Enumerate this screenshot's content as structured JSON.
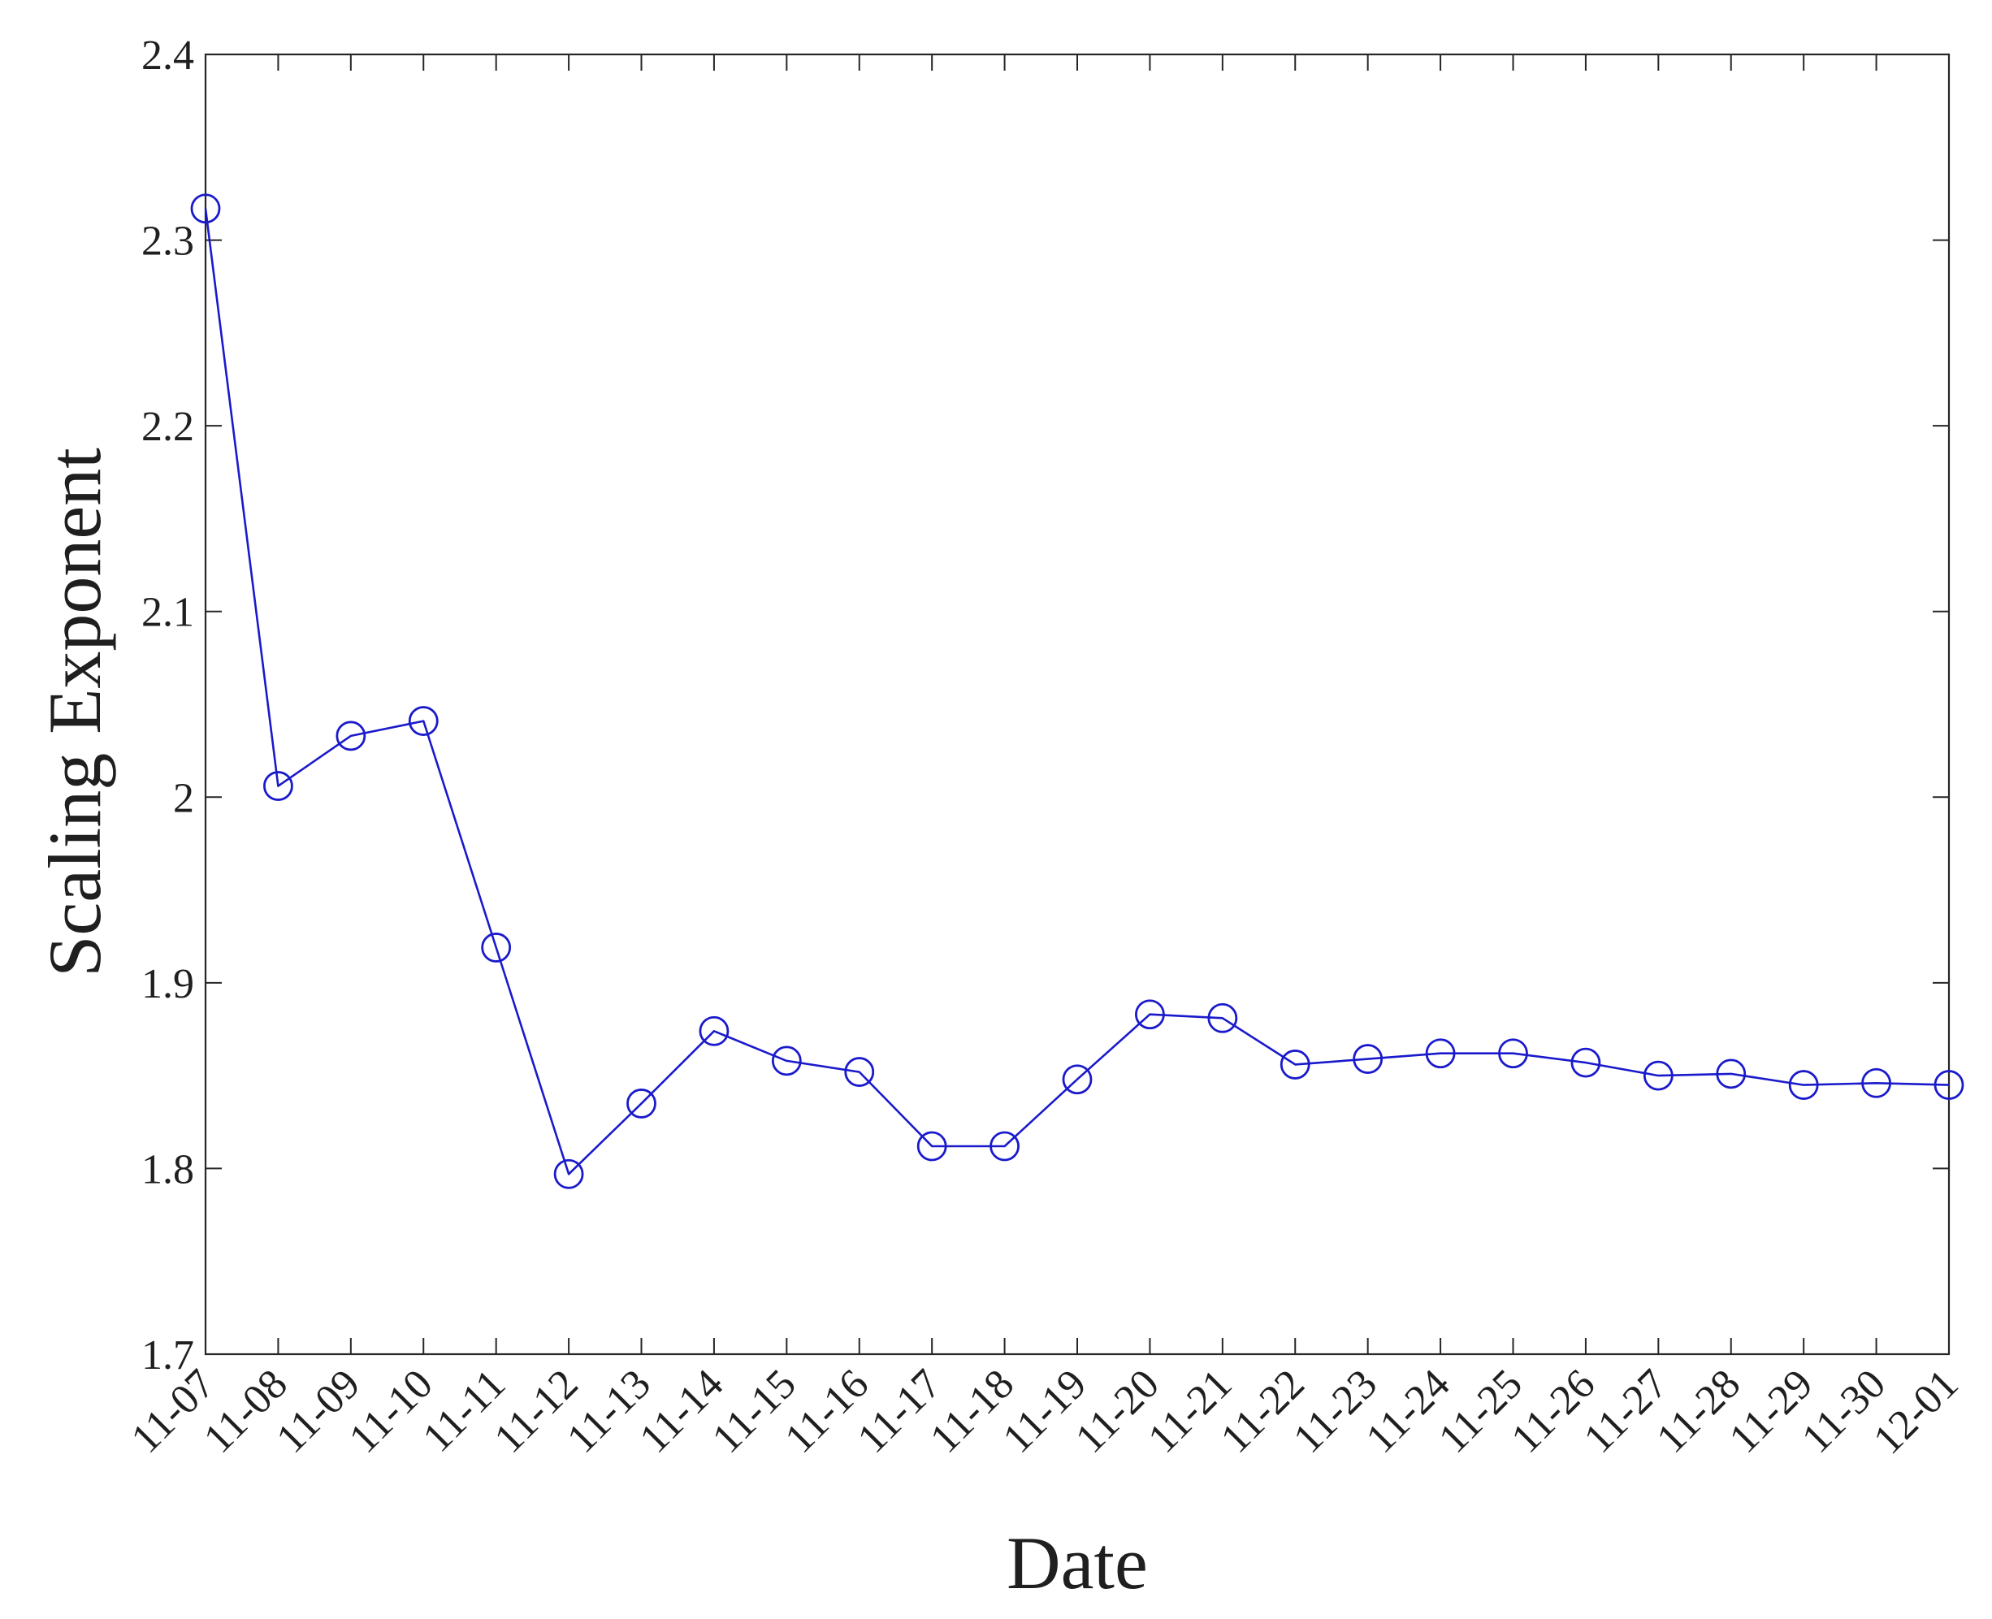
{
  "chart_data": {
    "type": "line",
    "title": "",
    "xlabel": "Date",
    "ylabel": "Scaling Exponent",
    "categories": [
      "11-07",
      "11-08",
      "11-09",
      "11-10",
      "11-11",
      "11-12",
      "11-13",
      "11-14",
      "11-15",
      "11-16",
      "11-17",
      "11-18",
      "11-19",
      "11-20",
      "11-21",
      "11-22",
      "11-23",
      "11-24",
      "11-25",
      "11-26",
      "11-27",
      "11-28",
      "11-29",
      "11-30",
      "12-01"
    ],
    "series": [
      {
        "values": [
          2.317,
          2.006,
          2.033,
          2.041,
          1.919,
          1.797,
          1.835,
          1.874,
          1.858,
          1.852,
          1.812,
          1.812,
          1.848,
          1.883,
          1.881,
          1.856,
          1.859,
          1.862,
          1.862,
          1.857,
          1.85,
          1.851,
          1.845,
          1.846,
          1.845
        ],
        "color": "#1a1acc",
        "marker": "open-circle"
      }
    ],
    "ylim": [
      1.7,
      2.4
    ],
    "yticks": [
      "1.7",
      "1.8",
      "1.9",
      "2",
      "2.1",
      "2.2",
      "2.3",
      "2.4"
    ],
    "grid": false,
    "legend": "none"
  }
}
